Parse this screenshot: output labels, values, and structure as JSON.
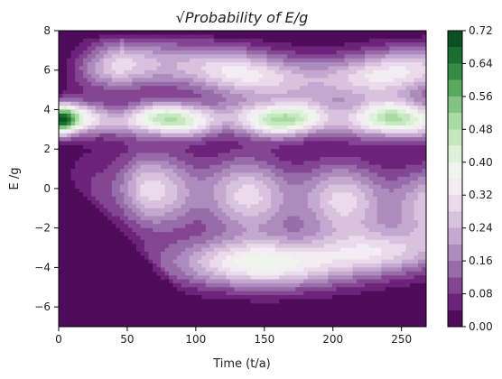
{
  "chart_data": {
    "type": "heatmap",
    "title": "√Probability of E/g",
    "title_parts": {
      "root": "√",
      "text": "Probability of E/g"
    },
    "xlabel": "Time (t/a)",
    "ylabel": "E /g",
    "xlim": [
      0,
      268
    ],
    "ylim": [
      -7,
      8
    ],
    "x_ticks": [
      0,
      50,
      100,
      150,
      200,
      250
    ],
    "y_ticks": [
      -6,
      -4,
      -2,
      0,
      2,
      4,
      6,
      8
    ],
    "x_tick_labels": [
      "0",
      "50",
      "100",
      "150",
      "200",
      "250"
    ],
    "y_tick_labels": [
      "−6",
      "−4",
      "−2",
      "0",
      "2",
      "4",
      "6",
      "8"
    ],
    "grid": false,
    "colorbar": {
      "min": 0.0,
      "max": 0.72,
      "levels": 18,
      "ticks": [
        0.0,
        0.08,
        0.16,
        0.24,
        0.32,
        0.4,
        0.48,
        0.56,
        0.64,
        0.72
      ],
      "tick_labels": [
        "0.00",
        "0.08",
        "0.16",
        "0.24",
        "0.32",
        "0.40",
        "0.48",
        "0.56",
        "0.64",
        "0.72"
      ],
      "colormap": "PRGn",
      "colors": [
        "#40004b",
        "#762a83",
        "#9970ab",
        "#c2a5cf",
        "#e7d4e8",
        "#f7f7f7",
        "#d9f0d3",
        "#a6dba0",
        "#5aae61",
        "#1b7837",
        "#00441b"
      ]
    },
    "features": [
      {
        "name": "central-band",
        "E_center": 3.5,
        "value": 0.48
      },
      {
        "name": "origin-peak",
        "t": 3,
        "E": 3.5,
        "value": 0.72
      },
      {
        "name": "upper-lobe",
        "E_range": [
          4.5,
          7.3
        ],
        "value": 0.34
      },
      {
        "name": "lower-lobe",
        "t": 150,
        "E": -3.8,
        "value": 0.38
      }
    ]
  }
}
